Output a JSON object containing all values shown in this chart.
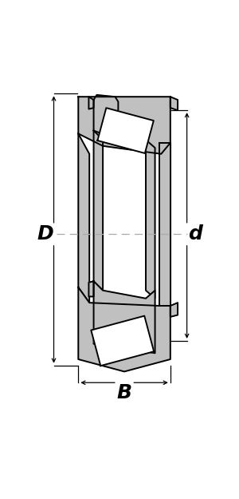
{
  "fig_width": 3.0,
  "fig_height": 6.25,
  "dpi": 100,
  "bg_color": "#ffffff",
  "gray_fill": "#c0c0c0",
  "white_fill": "#ffffff",
  "black_line": "#000000",
  "lw_main": 1.4,
  "lw_dim": 0.9,
  "label_D": "D",
  "label_d": "d",
  "label_B": "B",
  "fontsize_label": 18
}
